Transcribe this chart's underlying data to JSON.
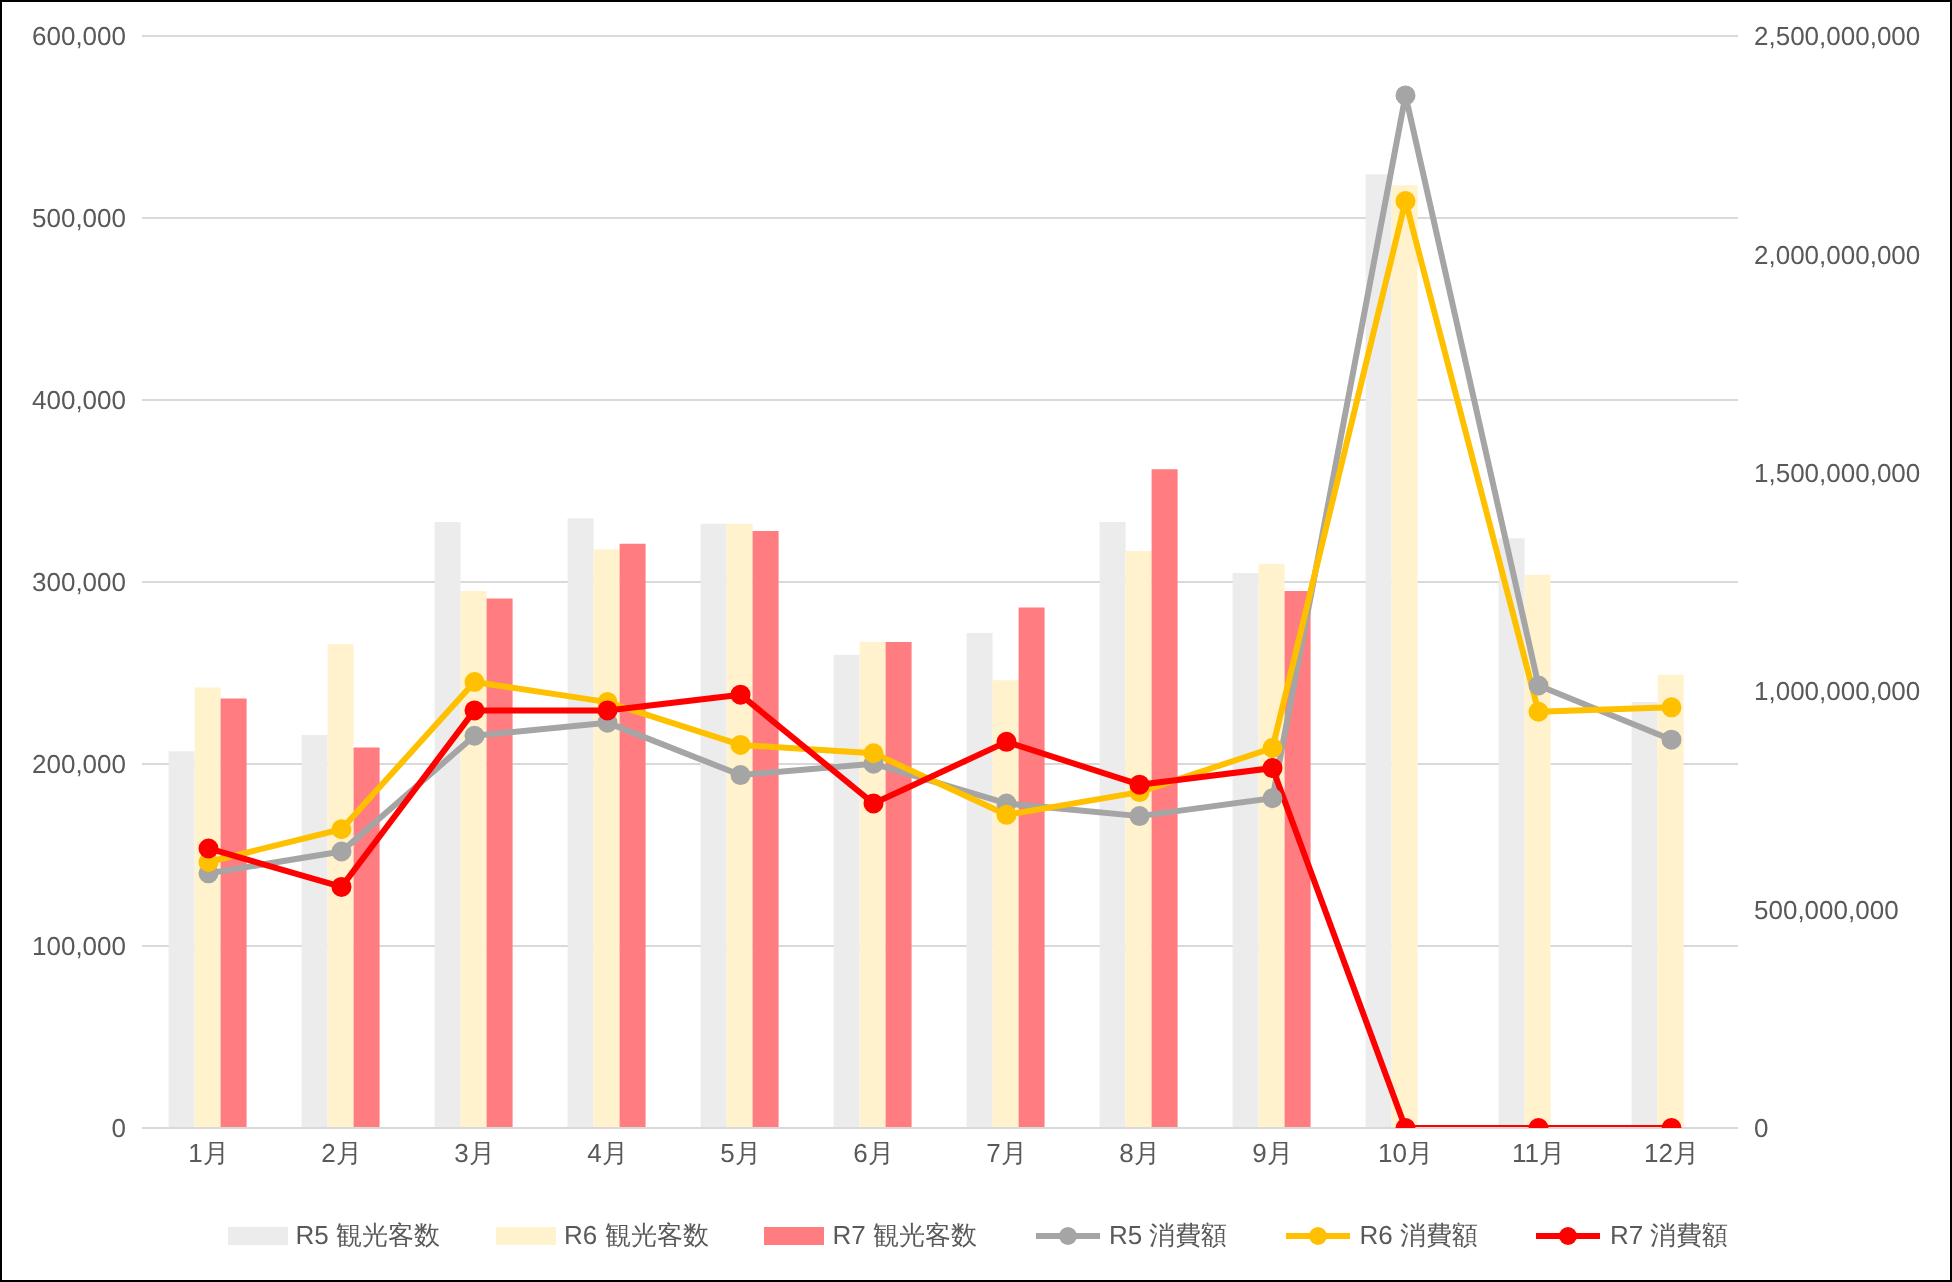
{
  "chart_data": {
    "type": "bar",
    "categories": [
      "1月",
      "2月",
      "3月",
      "4月",
      "5月",
      "6月",
      "7月",
      "8月",
      "9月",
      "10月",
      "11月",
      "12月"
    ],
    "series": [
      {
        "name": "R5 観光客数",
        "color": "#ececec",
        "values": [
          207000,
          216000,
          333000,
          335000,
          332000,
          260000,
          272000,
          333000,
          305000,
          524000,
          324000,
          234000
        ]
      },
      {
        "name": "R6 観光客数",
        "color": "#fff2cc",
        "values": [
          242000,
          266000,
          295000,
          318000,
          332000,
          267000,
          246000,
          317000,
          310000,
          518000,
          304000,
          249000
        ]
      },
      {
        "name": "R7 観光客数",
        "color": "#ff7c80",
        "values": [
          236000,
          209000,
          291000,
          321000,
          328000,
          267000,
          286000,
          362000,
          295000,
          null,
          null,
          null
        ]
      },
      {
        "name": "R5 消費額",
        "type": "line",
        "axis": "y2",
        "color": "#a5a5a5",
        "values": [
          583000000,
          633000000,
          898000000,
          928000000,
          808000000,
          834000000,
          743000000,
          714000000,
          755000000,
          2364000000,
          1013000000,
          889000000
        ]
      },
      {
        "name": "R6 消費額",
        "type": "line",
        "axis": "y2",
        "color": "#ffc000",
        "values": [
          609000000,
          684000000,
          1021000000,
          975000000,
          877000000,
          858000000,
          717000000,
          769000000,
          870000000,
          2122000000,
          953000000,
          963000000
        ]
      },
      {
        "name": "R7 消費額",
        "type": "line",
        "axis": "y2",
        "color": "#ff0000",
        "values": [
          640000000,
          552000000,
          956000000,
          956000000,
          992000000,
          743000000,
          884000000,
          786000000,
          824000000,
          0,
          0,
          0
        ]
      }
    ],
    "ylim": [
      0,
      600000
    ],
    "yticks": [
      0,
      {
        "value": 100000,
        "label": "100,000"
      },
      {
        "value": 200000,
        "label": "200,000"
      },
      {
        "value": 300000,
        "label": "300,000"
      },
      {
        "value": 400000,
        "label": "400,000"
      },
      {
        "value": 500000,
        "label": "500,000"
      },
      {
        "value": 600000,
        "label": "600,000"
      }
    ],
    "y2lim": [
      0,
      2500000000
    ],
    "y2ticks": [
      0,
      {
        "value": 500000000,
        "label": "500,000,000"
      },
      {
        "value": 1000000000,
        "label": "1,000,000,000"
      },
      {
        "value": 1500000000,
        "label": "1,500,000,000"
      },
      {
        "value": 2000000000,
        "label": "2,000,000,000"
      },
      {
        "value": 2500000000,
        "label": "2,500,000,000"
      }
    ],
    "grid": "y",
    "legend": "bottom",
    "marker": "circle",
    "line_style": "solid"
  }
}
